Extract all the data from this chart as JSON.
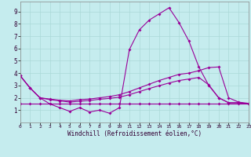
{
  "background_color": "#c5ecee",
  "line_color": "#990099",
  "xlim": [
    0,
    23
  ],
  "ylim": [
    0,
    9.8
  ],
  "xticks": [
    0,
    1,
    2,
    3,
    4,
    5,
    6,
    7,
    8,
    9,
    10,
    11,
    12,
    13,
    14,
    15,
    16,
    17,
    18,
    19,
    20,
    21,
    22,
    23
  ],
  "yticks": [
    1,
    2,
    3,
    4,
    5,
    6,
    7,
    8,
    9
  ],
  "grid_color": "#aad8d8",
  "xlabel": "Windchill (Refroidissement éolien,°C)",
  "line1_x": [
    0,
    1,
    2,
    3,
    4,
    5,
    6,
    7,
    8,
    9,
    10,
    11,
    12,
    13,
    14,
    15,
    16,
    17,
    18,
    19,
    20,
    21,
    22,
    23
  ],
  "line1_y": [
    3.8,
    2.8,
    2.0,
    1.5,
    1.2,
    0.9,
    1.2,
    0.85,
    1.0,
    0.75,
    1.2,
    5.9,
    7.5,
    8.3,
    8.8,
    9.3,
    8.1,
    6.6,
    4.5,
    3.0,
    2.0,
    1.6,
    1.6,
    1.5
  ],
  "line2_x": [
    0,
    1,
    2,
    3,
    4,
    5,
    6,
    7,
    8,
    9,
    10,
    11,
    12,
    13,
    14,
    15,
    16,
    17,
    18,
    19,
    20,
    21,
    22,
    23
  ],
  "line2_y": [
    3.8,
    2.8,
    2.0,
    1.9,
    1.8,
    1.75,
    1.85,
    1.9,
    2.0,
    2.1,
    2.25,
    2.5,
    2.8,
    3.1,
    3.4,
    3.65,
    3.9,
    4.0,
    4.2,
    4.45,
    4.5,
    2.0,
    1.65,
    1.55
  ],
  "line3_x": [
    0,
    1,
    2,
    3,
    4,
    5,
    6,
    7,
    8,
    9,
    10,
    11,
    12,
    13,
    14,
    15,
    16,
    17,
    18,
    19,
    20,
    21,
    22,
    23
  ],
  "line3_y": [
    3.8,
    2.8,
    2.0,
    1.85,
    1.75,
    1.65,
    1.72,
    1.78,
    1.88,
    1.95,
    2.05,
    2.25,
    2.5,
    2.75,
    2.98,
    3.2,
    3.4,
    3.52,
    3.65,
    3.05,
    2.0,
    1.6,
    1.6,
    1.52
  ],
  "line4_x": [
    0,
    1,
    2,
    3,
    4,
    5,
    6,
    7,
    8,
    9,
    10,
    11,
    12,
    13,
    14,
    15,
    16,
    17,
    18,
    19,
    20,
    21,
    22,
    23
  ],
  "line4_y": [
    1.55,
    1.55,
    1.55,
    1.55,
    1.55,
    1.55,
    1.55,
    1.55,
    1.55,
    1.55,
    1.55,
    1.55,
    1.55,
    1.55,
    1.55,
    1.55,
    1.55,
    1.55,
    1.55,
    1.55,
    1.55,
    1.55,
    1.55,
    1.55
  ],
  "marker": "D",
  "markersize": 2.0,
  "linewidth": 0.8
}
